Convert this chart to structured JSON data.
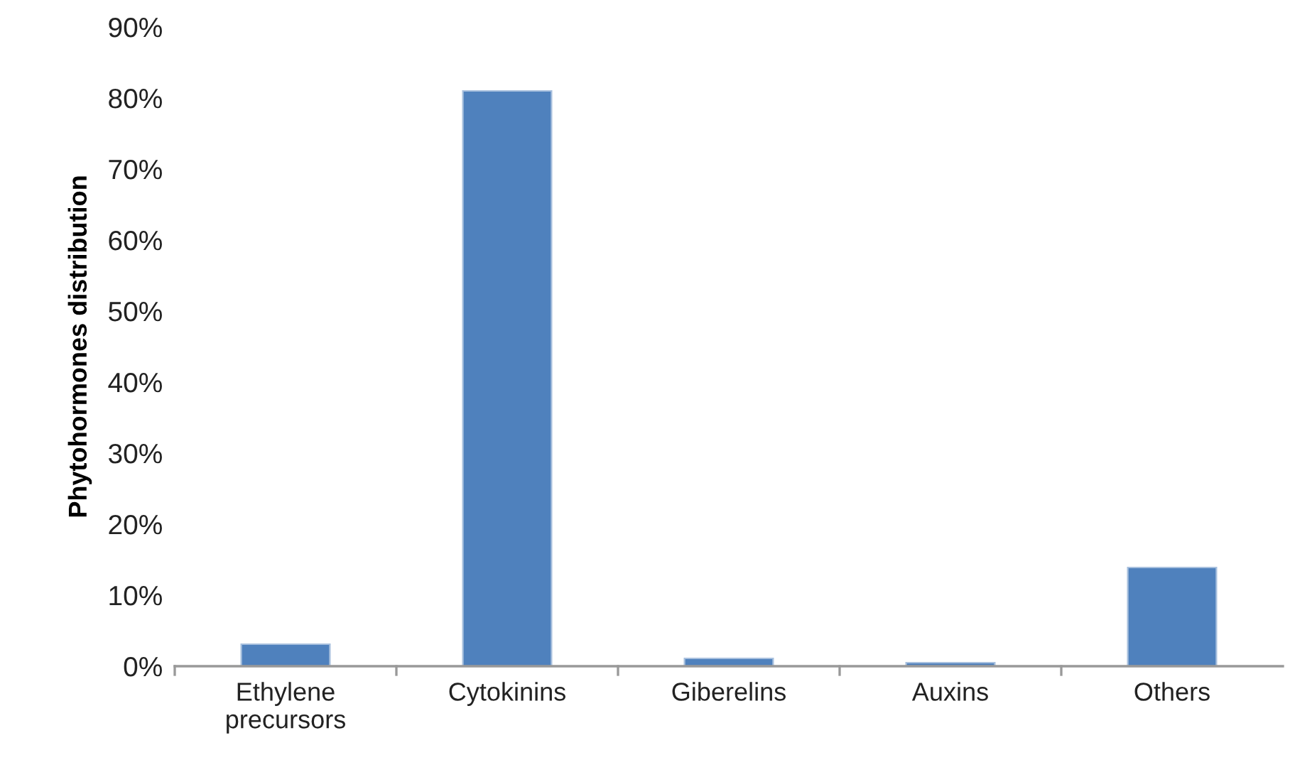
{
  "chart_data": {
    "type": "bar",
    "ylabel": "Phytohormones distribution",
    "categories": [
      "Ethylene\nprecursors",
      "Cytokinins",
      "Giberelins",
      "Auxins",
      "Others"
    ],
    "values": [
      3.1,
      81,
      1.1,
      0.5,
      13.9
    ],
    "color": "#4f81bd",
    "ylim": [
      0,
      90
    ],
    "yticks": [
      {
        "value": 0,
        "label": "0%"
      },
      {
        "value": 10,
        "label": "10%"
      },
      {
        "value": 20,
        "label": "20%"
      },
      {
        "value": 30,
        "label": "30%"
      },
      {
        "value": 40,
        "label": "40%"
      },
      {
        "value": 50,
        "label": "50%"
      },
      {
        "value": 60,
        "label": "60%"
      },
      {
        "value": 70,
        "label": "70%"
      },
      {
        "value": 80,
        "label": "80%"
      },
      {
        "value": 90,
        "label": "90%"
      }
    ],
    "grid": false
  }
}
